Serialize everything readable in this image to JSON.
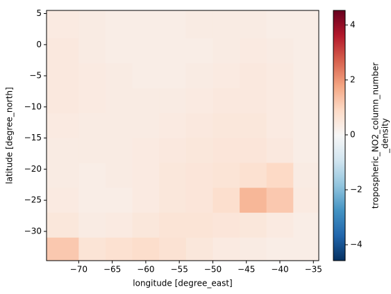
{
  "chart_data": {
    "type": "heatmap",
    "x_label": "longitude [degree_east]",
    "y_label": "latitude [degree_north]",
    "colorbar_label": [
      "tropospheric_NO2_column_number",
      "_density"
    ],
    "colormap": "RdBu_r",
    "x_edges": [
      -74.8,
      -70,
      -66,
      -62,
      -58,
      -54,
      -50,
      -46,
      -42,
      -38,
      -34.2
    ],
    "y_edges": [
      5.5,
      1,
      -3,
      -7,
      -11,
      -15,
      -19,
      -23,
      -27,
      -31,
      -34.7
    ],
    "z": [
      [
        0.4,
        0.35,
        0.3,
        0.3,
        0.3,
        0.35,
        0.35,
        0.35,
        0.3,
        0.3
      ],
      [
        0.45,
        0.35,
        0.3,
        0.3,
        0.3,
        0.3,
        0.35,
        0.4,
        0.35,
        0.3
      ],
      [
        0.45,
        0.4,
        0.35,
        0.3,
        0.3,
        0.35,
        0.4,
        0.45,
        0.4,
        0.3
      ],
      [
        0.45,
        0.4,
        0.35,
        0.35,
        0.35,
        0.4,
        0.45,
        0.45,
        0.4,
        0.3
      ],
      [
        0.4,
        0.35,
        0.35,
        0.35,
        0.4,
        0.45,
        0.5,
        0.5,
        0.4,
        0.3
      ],
      [
        0.35,
        0.35,
        0.35,
        0.4,
        0.45,
        0.5,
        0.55,
        0.55,
        0.45,
        0.3
      ],
      [
        0.35,
        0.3,
        0.35,
        0.4,
        0.5,
        0.55,
        0.6,
        0.7,
        0.9,
        0.35
      ],
      [
        0.4,
        0.3,
        0.3,
        0.4,
        0.5,
        0.55,
        0.75,
        1.5,
        1.2,
        0.4
      ],
      [
        0.5,
        0.35,
        0.4,
        0.5,
        0.6,
        0.6,
        0.55,
        0.5,
        0.4,
        0.3
      ],
      [
        1.2,
        0.6,
        0.7,
        0.8,
        0.65,
        0.5,
        0.4,
        0.35,
        0.3,
        0.3
      ]
    ],
    "xlim": [
      -74.8,
      -34.2
    ],
    "ylim": [
      -34.7,
      5.5
    ],
    "clim": [
      -4.58,
      4.53
    ],
    "xticks": [
      {
        "value": -70,
        "label": "−70"
      },
      {
        "value": -65,
        "label": "−65"
      },
      {
        "value": -60,
        "label": "−60"
      },
      {
        "value": -55,
        "label": "−55"
      },
      {
        "value": -50,
        "label": "−50"
      },
      {
        "value": -45,
        "label": "−45"
      },
      {
        "value": -40,
        "label": "−40"
      },
      {
        "value": -35,
        "label": "−35"
      }
    ],
    "yticks": [
      5,
      0,
      {
        "value": -5,
        "label": "−5"
      },
      {
        "value": -10,
        "label": "−10"
      },
      {
        "value": -15,
        "label": "−15"
      },
      {
        "value": -20,
        "label": "−20"
      },
      {
        "value": -25,
        "label": "−25"
      },
      {
        "value": -30,
        "label": "−30"
      }
    ],
    "cticks": [
      {
        "value": -4,
        "label": "−4"
      },
      {
        "value": -2,
        "label": "−2"
      },
      0,
      2,
      4
    ]
  }
}
